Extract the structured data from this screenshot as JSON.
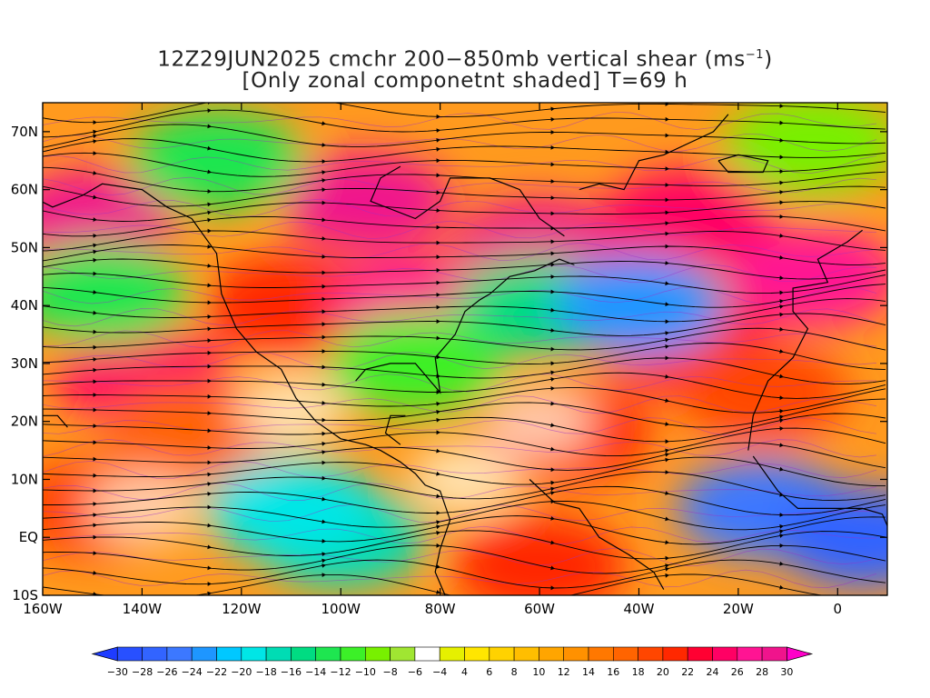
{
  "title": {
    "line1_pre": "12Z29JUN2025 cmchr 200−850mb vertical shear (ms",
    "line1_sup": "−1",
    "line1_post": ")",
    "line2": "[Only zonal componetnt shaded] T=69 h"
  },
  "map": {
    "lon_range": [
      -160,
      10
    ],
    "lat_range": [
      -10,
      75
    ],
    "lat_ticks": [
      {
        "value": 70,
        "label": "70N"
      },
      {
        "value": 60,
        "label": "60N"
      },
      {
        "value": 50,
        "label": "50N"
      },
      {
        "value": 40,
        "label": "40N"
      },
      {
        "value": 30,
        "label": "30N"
      },
      {
        "value": 20,
        "label": "20N"
      },
      {
        "value": 10,
        "label": "10N"
      },
      {
        "value": 0,
        "label": "EQ"
      },
      {
        "value": -10,
        "label": "10S"
      }
    ],
    "lon_ticks": [
      {
        "value": -160,
        "label": "160W"
      },
      {
        "value": -140,
        "label": "140W"
      },
      {
        "value": -120,
        "label": "120W"
      },
      {
        "value": -100,
        "label": "100W"
      },
      {
        "value": -80,
        "label": "80W"
      },
      {
        "value": -60,
        "label": "60W"
      },
      {
        "value": -40,
        "label": "40W"
      },
      {
        "value": -20,
        "label": "20W"
      },
      {
        "value": 0,
        "label": "0"
      }
    ],
    "shading_field": [
      {
        "lon": -150,
        "lat": 55,
        "value": 28
      },
      {
        "lon": -95,
        "lat": 58,
        "value": 28
      },
      {
        "lon": -60,
        "lat": 50,
        "value": 28
      },
      {
        "lon": -30,
        "lat": 55,
        "value": 24
      },
      {
        "lon": -5,
        "lat": 45,
        "value": 26
      },
      {
        "lon": -140,
        "lat": 28,
        "value": 24
      },
      {
        "lon": -110,
        "lat": 40,
        "value": 20
      },
      {
        "lon": -85,
        "lat": 40,
        "value": 26
      },
      {
        "lon": -30,
        "lat": 33,
        "value": 22
      },
      {
        "lon": -55,
        "lat": 18,
        "value": 20
      },
      {
        "lon": -150,
        "lat": 5,
        "value": 18
      },
      {
        "lon": -130,
        "lat": 18,
        "value": 16
      },
      {
        "lon": -60,
        "lat": -5,
        "value": 20
      },
      {
        "lon": -15,
        "lat": 25,
        "value": 18
      },
      {
        "lon": -125,
        "lat": 65,
        "value": -10
      },
      {
        "lon": -60,
        "lat": 40,
        "value": -12
      },
      {
        "lon": -40,
        "lat": 40,
        "value": -22
      },
      {
        "lon": -100,
        "lat": 0,
        "value": -16
      },
      {
        "lon": -110,
        "lat": 5,
        "value": -18
      },
      {
        "lon": -15,
        "lat": 5,
        "value": -24
      },
      {
        "lon": 5,
        "lat": 0,
        "value": -26
      },
      {
        "lon": -85,
        "lat": 30,
        "value": -8
      },
      {
        "lon": -5,
        "lat": 68,
        "value": -6
      },
      {
        "lon": -148,
        "lat": 42,
        "value": -10
      }
    ],
    "streamline_mean_flow": "westerly"
  },
  "colorbar": {
    "min": -30,
    "max": 30,
    "colors": [
      "#1e3cff",
      "#2850ff",
      "#3264ff",
      "#3c78ff",
      "#1e96ff",
      "#00c8ff",
      "#00e6e6",
      "#00dcb4",
      "#00dc82",
      "#1ee650",
      "#3cf028",
      "#78f000",
      "#a0e632",
      "#ffffff",
      "#e6f000",
      "#ffe600",
      "#ffd200",
      "#ffbe00",
      "#ffa500",
      "#ff9100",
      "#ff7800",
      "#ff6400",
      "#ff4600",
      "#ff2800",
      "#ff0032",
      "#ff0064",
      "#ff1493",
      "#f0148c",
      "#ff00c8"
    ],
    "labels": [
      -30,
      -28,
      -26,
      -24,
      -22,
      -20,
      -18,
      -16,
      -14,
      -12,
      -10,
      -8,
      -6,
      -4,
      4,
      6,
      8,
      10,
      12,
      14,
      16,
      18,
      20,
      22,
      24,
      26,
      28,
      30
    ]
  },
  "colors": {
    "contour": "#9b30c8",
    "streamline": "#000000",
    "coast": "#000000"
  }
}
